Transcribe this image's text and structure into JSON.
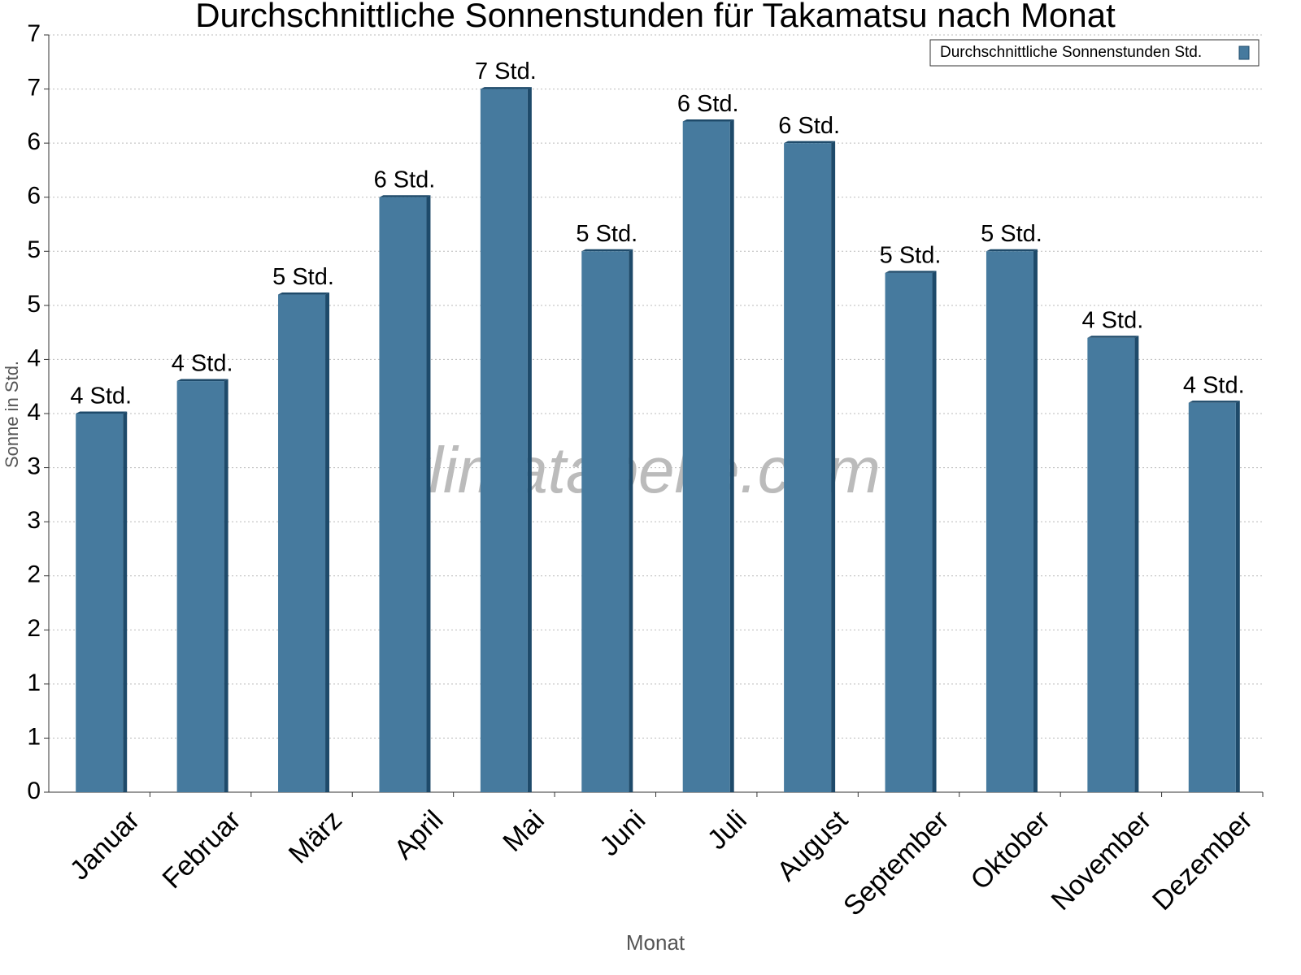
{
  "chart_data": {
    "type": "bar",
    "title": "Durchschnittliche Sonnenstunden für Takamatsu nach Monat",
    "x_label": "Monat",
    "y_label": "Sonne in Std.",
    "watermark": "klimatabelle.com",
    "categories": [
      "Januar",
      "Februar",
      "März",
      "April",
      "Mai",
      "Juni",
      "Juli",
      "August",
      "September",
      "Oktober",
      "November",
      "Dezember"
    ],
    "series": [
      {
        "name": "Durchschnittliche Sonnenstunden Std.",
        "color": "#467a9e",
        "values": [
          3.5,
          3.8,
          4.6,
          5.5,
          6.5,
          5.0,
          6.2,
          6.0,
          4.8,
          5.0,
          4.2,
          3.6
        ],
        "value_labels": [
          "4 Std.",
          "4 Std.",
          "5 Std.",
          "6 Std.",
          "7 Std.",
          "5 Std.",
          "6 Std.",
          "6 Std.",
          "5 Std.",
          "5 Std.",
          "4 Std.",
          "4 Std."
        ]
      }
    ],
    "ylim": [
      0,
      7
    ],
    "yticks": [
      0,
      {
        "value": 0.5,
        "label": "1"
      },
      1,
      {
        "value": 1.5,
        "label": "2"
      },
      2,
      {
        "value": 2.5,
        "label": "3"
      },
      3,
      {
        "value": 3.5,
        "label": "4"
      },
      4,
      {
        "value": 4.5,
        "label": "5"
      },
      5,
      {
        "value": 5.5,
        "label": "6"
      },
      6,
      {
        "value": 6.5,
        "label": "7"
      },
      7
    ],
    "grid": true,
    "legend": "top-right"
  }
}
